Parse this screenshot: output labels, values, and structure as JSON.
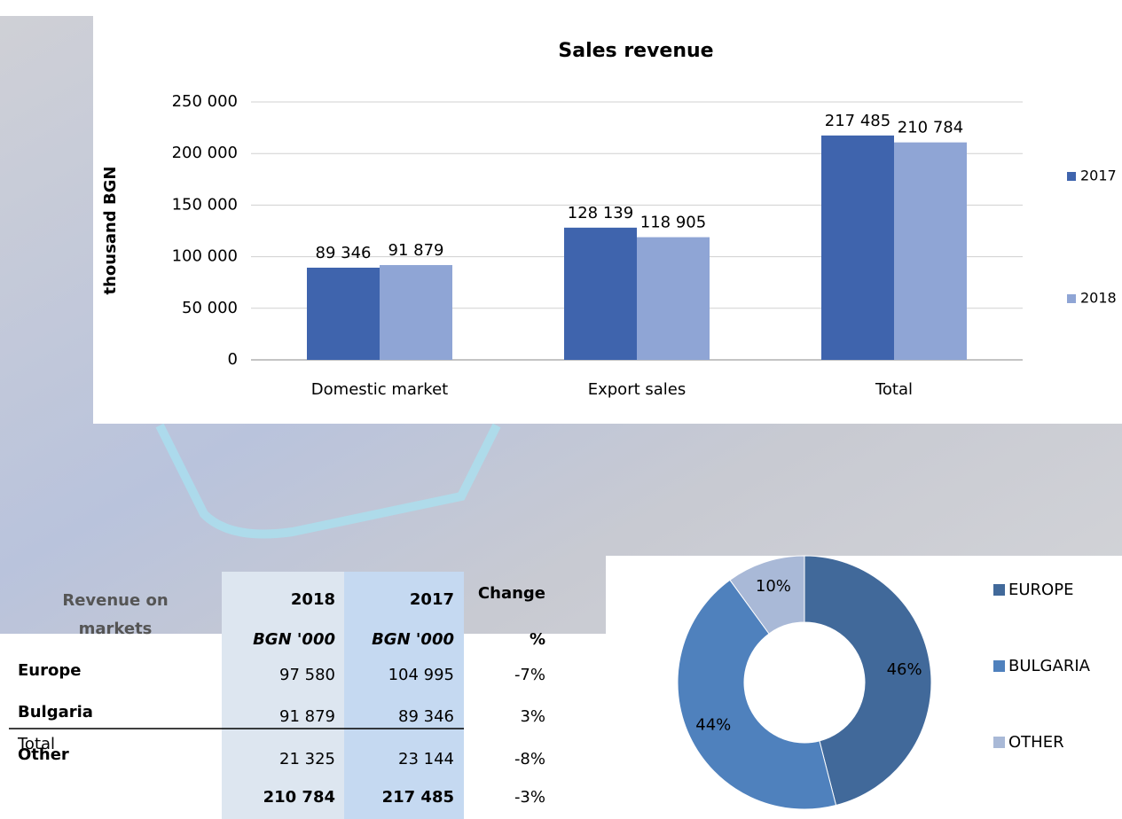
{
  "chart_data": [
    {
      "type": "bar",
      "title": "Sales revenue",
      "y_label": "thousand BGN",
      "categories": [
        "Domestic market",
        "Export sales",
        "Total"
      ],
      "series": [
        {
          "name": "2017",
          "color": "#3f64ad",
          "values": [
            89346,
            128139,
            217485
          ],
          "value_labels": [
            "89 346",
            "128 139",
            "217 485"
          ]
        },
        {
          "name": "2018",
          "color": "#8fa5d5",
          "values": [
            91879,
            118905,
            210784
          ],
          "value_labels": [
            "91 879",
            "118 905",
            "210 784"
          ]
        }
      ],
      "ylim": [
        0,
        250000
      ],
      "yticks": [
        0,
        {
          "value": 50000,
          "label": "50 000"
        },
        {
          "value": 100000,
          "label": "100 000"
        },
        {
          "value": 150000,
          "label": "150 000"
        },
        {
          "value": 200000,
          "label": "200 000"
        },
        {
          "value": 250000,
          "label": "250 000"
        }
      ],
      "grid": true,
      "legend": "right"
    },
    {
      "type": "pie",
      "categories": [
        "EUROPE",
        "BULGARIA",
        "OTHER"
      ],
      "values": [
        46,
        44,
        10
      ],
      "value_labels": [
        "46%",
        "44%",
        "10%"
      ],
      "colors": [
        "#41699a",
        "#4f81bd",
        "#a9b9d7"
      ],
      "donut": true,
      "legend": "right"
    }
  ],
  "table": {
    "header": [
      "Revenue on markets",
      "2018",
      "2017",
      "Change"
    ],
    "units": [
      "BGN '000",
      "BGN '000",
      "%"
    ],
    "rows": [
      [
        "Europe",
        "97 580",
        "104 995",
        "-7%"
      ],
      [
        "Bulgaria",
        "91 879",
        "89 346",
        "3%"
      ],
      [
        "Other",
        "21 325",
        "23 144",
        "-8%"
      ]
    ],
    "total": [
      "Total",
      "210 784",
      "217 485",
      "-3%"
    ]
  }
}
